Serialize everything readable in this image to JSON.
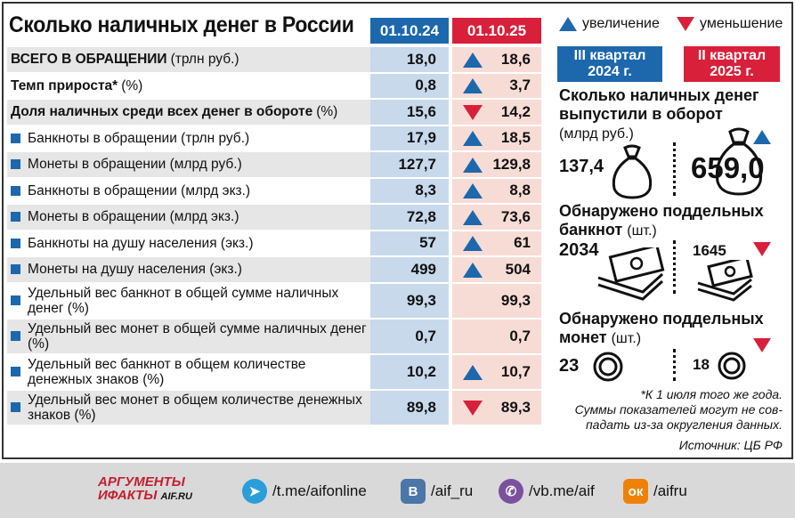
{
  "title": "Сколько наличных денег в России",
  "col_headers": [
    "01.10.24",
    "01.10.25"
  ],
  "legend": {
    "up_label": "увеличение",
    "down_label": "уменьшение"
  },
  "chart_data": {
    "type": "table",
    "title": "Сколько наличных денег в России",
    "columns": [
      "01.10.24",
      "01.10.25"
    ],
    "rows": [
      {
        "label": "ВСЕГО В ОБРАЩЕНИИ",
        "unit": "(трлн руб.)",
        "bold": true,
        "bullet": false,
        "v1": "18,0",
        "v2": "18,6",
        "trend": "up"
      },
      {
        "label": "Темп прироста*",
        "unit": "(%)",
        "bold": true,
        "bullet": false,
        "v1": "0,8",
        "v2": "3,7",
        "trend": "up"
      },
      {
        "label": "Доля наличных среди всех денег в обороте",
        "unit": "(%)",
        "bold": true,
        "bullet": false,
        "v1": "15,6",
        "v2": "14,2",
        "trend": "down"
      },
      {
        "label": "Банкноты в обращении (трлн руб.)",
        "unit": "",
        "bold": false,
        "bullet": true,
        "v1": "17,9",
        "v2": "18,5",
        "trend": "up"
      },
      {
        "label": "Монеты в обращении (млрд руб.)",
        "unit": "",
        "bold": false,
        "bullet": true,
        "v1": "127,7",
        "v2": "129,8",
        "trend": "up"
      },
      {
        "label": "Банкноты в обращении (млрд экз.)",
        "unit": "",
        "bold": false,
        "bullet": true,
        "v1": "8,3",
        "v2": "8,8",
        "trend": "up"
      },
      {
        "label": "Монеты в обращении (млрд экз.)",
        "unit": "",
        "bold": false,
        "bullet": true,
        "v1": "72,8",
        "v2": "73,6",
        "trend": "up"
      },
      {
        "label": "Банкноты на душу населения (экз.)",
        "unit": "",
        "bold": false,
        "bullet": true,
        "v1": "57",
        "v2": "61",
        "trend": "up"
      },
      {
        "label": "Монеты на душу населения (экз.)",
        "unit": "",
        "bold": false,
        "bullet": true,
        "v1": "499",
        "v2": "504",
        "trend": "up"
      },
      {
        "label": "Удельный вес банкнот в общей сумме наличных денег (%)",
        "unit": "",
        "bold": false,
        "bullet": true,
        "v1": "99,3",
        "v2": "99,3",
        "trend": "none"
      },
      {
        "label": "Удельный вес монет в общей сумме наличных денег (%)",
        "unit": "",
        "bold": false,
        "bullet": true,
        "v1": "0,7",
        "v2": "0,7",
        "trend": "none"
      },
      {
        "label": "Удельный вес банкнот в общем количестве денежных знаков (%)",
        "unit": "",
        "bold": false,
        "bullet": true,
        "v1": "10,2",
        "v2": "10,7",
        "trend": "up"
      },
      {
        "label": "Удельный вес монет в общем количестве денежных знаков (%)",
        "unit": "",
        "bold": false,
        "bullet": true,
        "v1": "89,8",
        "v2": "89,3",
        "trend": "down"
      }
    ]
  },
  "quarters": {
    "q3": "III квартал 2024 г.",
    "q2": "II квартал 2025 г."
  },
  "issued": {
    "title": "Сколько наличных денег выпустили в оборот",
    "unit": "(млрд руб.)",
    "v1": "137,4",
    "v2": "659,0",
    "trend": "up"
  },
  "fake_notes": {
    "title": "Обнаружено поддельных банкнот",
    "unit": "(шт.)",
    "v1": "2034",
    "v2": "1645",
    "trend": "down"
  },
  "fake_coins": {
    "title": "Обнаружено поддельных монет",
    "unit": "(шт.)",
    "v1": "23",
    "v2": "18",
    "trend": "down"
  },
  "footnote": [
    "*К 1 июля того же года.",
    "Суммы показателей могут не сов-",
    "падать из-за округления данных."
  ],
  "source": "Источник: ЦБ РФ",
  "footer": {
    "logo_line1": "АРГУМЕНТЫ",
    "logo_line2": "ИФАКТЫ",
    "logo_site": "AIF.RU",
    "telegram": "/t.me/aifonline",
    "vk": "/aif_ru",
    "viber": "/vb.me/aif",
    "ok": "/aifru"
  },
  "colors": {
    "blue": "#1d68ad",
    "red": "#d8203a"
  }
}
